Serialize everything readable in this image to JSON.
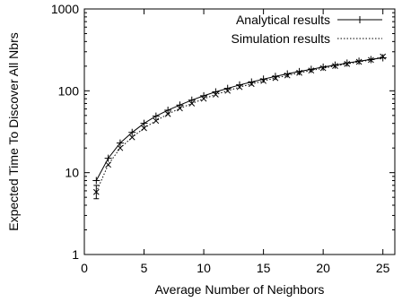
{
  "chart_data": {
    "type": "line",
    "title": "",
    "xlabel": "Average Number of Neighbors",
    "ylabel": "Expected Time To Discover All Nbrs",
    "xlim": [
      0,
      26
    ],
    "ylim": [
      1,
      1000
    ],
    "yscale": "log",
    "grid": false,
    "legend_position": "top-right",
    "x_ticks": [
      0,
      5,
      10,
      15,
      20,
      25
    ],
    "x_tick_labels": [
      "0",
      "5",
      "10",
      "15",
      "20",
      "25"
    ],
    "y_ticks": [
      1,
      10,
      100,
      1000
    ],
    "y_tick_labels": [
      "1",
      "10",
      "100",
      "1000"
    ],
    "x": [
      1,
      2,
      3,
      4,
      5,
      6,
      7,
      8,
      9,
      10,
      11,
      12,
      13,
      14,
      15,
      16,
      17,
      18,
      19,
      20,
      21,
      22,
      23,
      24,
      25
    ],
    "series": [
      {
        "name": "Analytical results",
        "style": "solid",
        "marker": "plus",
        "values": [
          8,
          15,
          23,
          31,
          40,
          49,
          58,
          67,
          77,
          87,
          97,
          107,
          118,
          128,
          139,
          150,
          161,
          172,
          183,
          195,
          206,
          218,
          230,
          241,
          253
        ]
      },
      {
        "name": "Simulation results",
        "style": "dotted",
        "marker": "cross",
        "values": [
          5.8,
          12.5,
          20,
          27,
          35,
          43,
          52,
          61,
          70,
          80,
          90,
          100,
          111,
          121,
          132,
          143,
          154,
          166,
          177,
          189,
          201,
          213,
          226,
          238,
          262
        ],
        "error_bars": [
          [
            4.8,
            7
          ],
          null,
          null,
          null,
          null,
          null,
          null,
          null,
          null,
          null,
          null,
          null,
          null,
          null,
          null,
          null,
          null,
          null,
          null,
          null,
          null,
          null,
          null,
          null,
          null
        ]
      }
    ]
  }
}
